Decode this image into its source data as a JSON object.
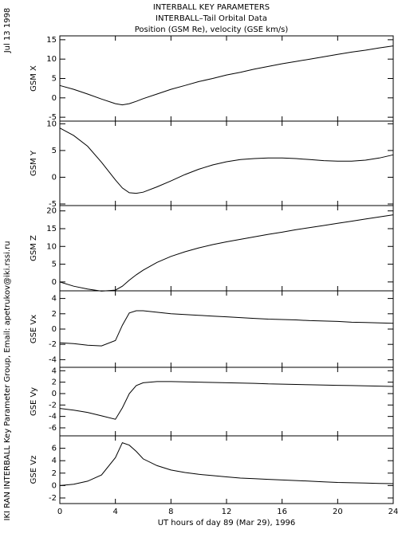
{
  "header": [
    "INTERBALL KEY PARAMETERS",
    "INTERBALL–Tail Orbital Data",
    "Position (GSM Re), velocity (GSE km/s)"
  ],
  "date_label": "Jul 13 1998",
  "credit": "IKI RAN INTERBALL Key Parameter Group, Email: apetrukov@iki.rssi.ru",
  "chart_data": [
    {
      "type": "line",
      "ylabel": "GSM X",
      "xlim": [
        0,
        24
      ],
      "ylim": [
        -6,
        16
      ],
      "yticks": [
        -5,
        0,
        5,
        10,
        15
      ],
      "x": [
        0,
        1,
        2,
        3,
        4,
        4.5,
        5,
        5.5,
        6,
        7,
        8,
        9,
        10,
        11,
        12,
        13,
        14,
        15,
        16,
        17,
        18,
        19,
        20,
        21,
        22,
        23,
        24
      ],
      "series": [
        {
          "color": "#000000",
          "values": [
            3.2,
            2.2,
            1.0,
            -0.3,
            -1.5,
            -1.8,
            -1.5,
            -0.9,
            -0.2,
            1.0,
            2.2,
            3.2,
            4.2,
            5.0,
            5.9,
            6.6,
            7.4,
            8.1,
            8.8,
            9.4,
            10.0,
            10.6,
            11.2,
            11.8,
            12.3,
            12.9,
            13.4
          ]
        }
      ]
    },
    {
      "type": "line",
      "ylabel": "GSM Y",
      "xlim": [
        0,
        24
      ],
      "ylim": [
        -5.3,
        10.5
      ],
      "yticks": [
        -5,
        0,
        5,
        10
      ],
      "x": [
        0,
        1,
        2,
        3,
        4,
        4.5,
        5,
        5.5,
        6,
        7,
        8,
        9,
        10,
        11,
        12,
        13,
        14,
        15,
        16,
        17,
        18,
        19,
        20,
        21,
        22,
        23,
        24
      ],
      "series": [
        {
          "color": "#000000",
          "values": [
            9.2,
            7.8,
            5.8,
            2.8,
            -0.5,
            -2.0,
            -2.9,
            -3.0,
            -2.8,
            -1.8,
            -0.7,
            0.5,
            1.5,
            2.3,
            2.9,
            3.3,
            3.5,
            3.6,
            3.6,
            3.5,
            3.3,
            3.1,
            3.0,
            3.0,
            3.2,
            3.6,
            4.2
          ]
        }
      ]
    },
    {
      "type": "line",
      "ylabel": "GSM Z",
      "xlim": [
        0,
        24
      ],
      "ylim": [
        -2.5,
        21.5
      ],
      "yticks": [
        0,
        5,
        10,
        15,
        20
      ],
      "x": [
        0,
        1,
        2,
        3,
        4,
        4.5,
        5,
        5.5,
        6,
        7,
        8,
        9,
        10,
        11,
        12,
        13,
        14,
        15,
        16,
        17,
        18,
        19,
        20,
        21,
        22,
        23,
        24
      ],
      "series": [
        {
          "color": "#000000",
          "values": [
            0,
            -1.2,
            -2,
            -2.6,
            -2.3,
            -1.2,
            0.5,
            2,
            3.3,
            5.5,
            7.2,
            8.5,
            9.6,
            10.5,
            11.3,
            12.0,
            12.7,
            13.4,
            14.0,
            14.7,
            15.3,
            15.9,
            16.5,
            17.1,
            17.7,
            18.3,
            18.9
          ]
        }
      ]
    },
    {
      "type": "line",
      "ylabel": "GSE Vx",
      "xlim": [
        0,
        24
      ],
      "ylim": [
        -5,
        5
      ],
      "yticks": [
        -4,
        -2,
        0,
        2,
        4
      ],
      "x": [
        0,
        1,
        2,
        3,
        4,
        4.5,
        5,
        5.5,
        6,
        7,
        8,
        9,
        10,
        11,
        12,
        13,
        14,
        15,
        16,
        17,
        18,
        19,
        20,
        21,
        22,
        23,
        24
      ],
      "series": [
        {
          "color": "#000000",
          "values": [
            -1.8,
            -1.9,
            -2.1,
            -2.2,
            -1.5,
            0.5,
            2.1,
            2.4,
            2.4,
            2.2,
            2.0,
            1.9,
            1.8,
            1.7,
            1.6,
            1.5,
            1.4,
            1.3,
            1.25,
            1.2,
            1.1,
            1.05,
            1.0,
            0.9,
            0.85,
            0.8,
            0.75
          ]
        }
      ]
    },
    {
      "type": "line",
      "ylabel": "GSE Vy",
      "xlim": [
        0,
        24
      ],
      "ylim": [
        -7.4,
        4.6
      ],
      "yticks": [
        -6,
        -4,
        -2,
        0,
        2,
        4
      ],
      "x": [
        0,
        1,
        2,
        3,
        4,
        4.5,
        5,
        5.5,
        6,
        7,
        8,
        9,
        10,
        11,
        12,
        13,
        14,
        15,
        16,
        17,
        18,
        19,
        20,
        21,
        22,
        23,
        24
      ],
      "series": [
        {
          "color": "#000000",
          "values": [
            -2.6,
            -2.9,
            -3.3,
            -3.9,
            -4.5,
            -2.5,
            0,
            1.4,
            1.9,
            2.1,
            2.1,
            2.05,
            2.0,
            1.95,
            1.9,
            1.85,
            1.8,
            1.7,
            1.65,
            1.6,
            1.55,
            1.5,
            1.45,
            1.4,
            1.35,
            1.3,
            1.25
          ]
        }
      ]
    },
    {
      "type": "line",
      "ylabel": "GSE Vz",
      "xlabel": "UT hours of day  89 (Mar 29), 1996",
      "xlim": [
        0,
        24
      ],
      "xticks": [
        0,
        4,
        8,
        12,
        16,
        20,
        24
      ],
      "ylim": [
        -2.9,
        8
      ],
      "yticks": [
        -2,
        0,
        2,
        4,
        6
      ],
      "x": [
        0,
        1,
        2,
        3,
        4,
        4.5,
        5,
        5.5,
        6,
        7,
        8,
        9,
        10,
        11,
        12,
        13,
        14,
        15,
        16,
        17,
        18,
        19,
        20,
        21,
        22,
        23,
        24
      ],
      "series": [
        {
          "color": "#000000",
          "values": [
            0.0,
            0.2,
            0.7,
            1.7,
            4.5,
            6.9,
            6.5,
            5.5,
            4.3,
            3.2,
            2.5,
            2.1,
            1.8,
            1.6,
            1.4,
            1.2,
            1.1,
            1.0,
            0.9,
            0.8,
            0.7,
            0.6,
            0.5,
            0.45,
            0.4,
            0.35,
            0.3
          ]
        }
      ]
    }
  ]
}
